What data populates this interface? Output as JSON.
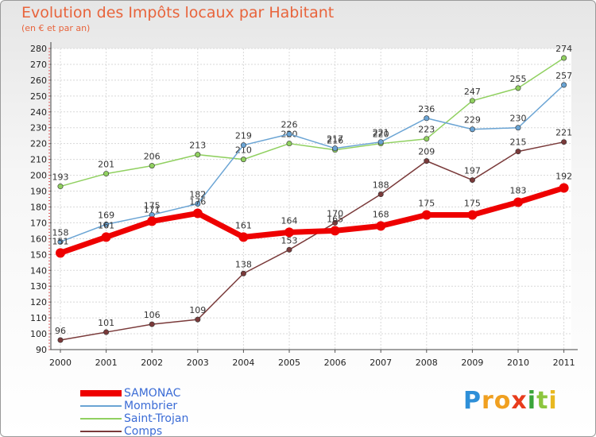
{
  "title": "Evolution des Impôts locaux par Habitant",
  "subtitle": "(en € et par an)",
  "brand": {
    "text": "Proxiti",
    "letters": [
      {
        "ch": "P",
        "color": "#2e8fd8"
      },
      {
        "ch": "r",
        "color": "#f0a020"
      },
      {
        "ch": "o",
        "color": "#f0a020"
      },
      {
        "ch": "x",
        "color": "#e83c1c"
      },
      {
        "ch": "i",
        "color": "#3aa53a"
      },
      {
        "ch": "t",
        "color": "#8cc63f"
      },
      {
        "ch": "i",
        "color": "#e8b820"
      }
    ]
  },
  "chart_data": {
    "type": "line",
    "title": "Evolution des Impôts locaux par Habitant",
    "subtitle": "(en € et par an)",
    "xlabel": "",
    "ylabel": "",
    "categories": [
      "2000",
      "2001",
      "2002",
      "2003",
      "2004",
      "2005",
      "2006",
      "2007",
      "2008",
      "2009",
      "2010",
      "2011"
    ],
    "ylim": [
      90,
      280
    ],
    "yticks": [
      "90",
      "100",
      "110",
      "120",
      "130",
      "140",
      "150",
      "160",
      "170",
      "180",
      "190",
      "200",
      "210",
      "220",
      "230",
      "240",
      "250",
      "260",
      "270",
      "280"
    ],
    "grid": true,
    "legend_position": "bottom-left",
    "series": [
      {
        "name": "SAMONAC",
        "color": "#ee0000",
        "values": [
          151,
          161,
          171,
          176,
          161,
          164,
          165,
          168,
          175,
          175,
          183,
          192
        ],
        "labels": [
          "151",
          "161",
          "171",
          "176",
          "161",
          "164",
          "165",
          "168",
          "175",
          "175",
          "183",
          "192"
        ]
      },
      {
        "name": "Mombrier",
        "color": "#6aa4d4",
        "values": [
          158,
          169,
          175,
          182,
          219,
          226,
          217,
          221,
          236,
          229,
          230,
          257
        ],
        "labels": [
          "158",
          "169",
          "175",
          "182",
          "219",
          "226",
          "217",
          "221",
          "236",
          "229",
          "230",
          "257"
        ]
      },
      {
        "name": "Saint-Trojan",
        "color": "#90d060",
        "values": [
          193,
          201,
          206,
          213,
          210,
          220,
          216,
          220,
          223,
          247,
          255,
          274
        ],
        "labels": [
          "193",
          "201",
          "206",
          "213",
          "210",
          "220",
          "216",
          "220",
          "223",
          "247",
          "255",
          "274"
        ]
      },
      {
        "name": "Comps",
        "color": "#7a3a3a",
        "values": [
          96,
          101,
          106,
          109,
          138,
          153,
          170,
          188,
          209,
          197,
          215,
          221
        ],
        "labels": [
          "96",
          "101",
          "106",
          "109",
          "138",
          "153",
          "170",
          "188",
          "209",
          "197",
          "215",
          "221"
        ]
      }
    ]
  }
}
